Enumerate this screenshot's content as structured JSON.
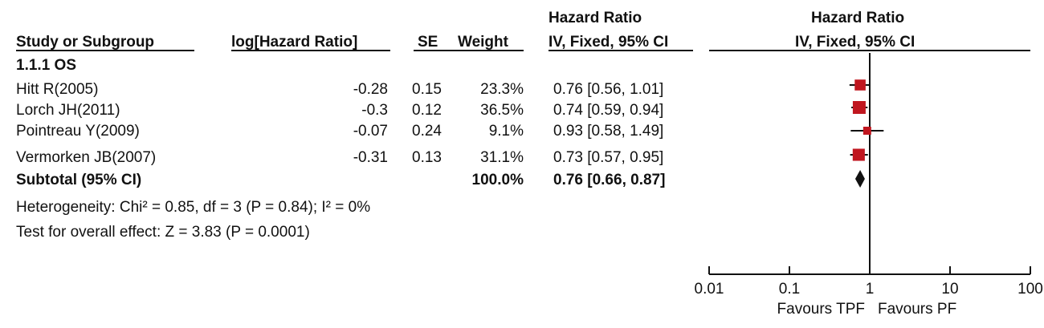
{
  "header": {
    "hazard_ratio_title_left": "Hazard Ratio",
    "hazard_ratio_title_right": "Hazard Ratio",
    "study_or_subgroup": "Study or Subgroup",
    "log_hazard_ratio": "log[Hazard Ratio]",
    "se": "SE",
    "weight": "Weight",
    "method_left": "IV, Fixed, 95% CI",
    "method_right": "IV, Fixed, 95% CI"
  },
  "subgroup_title": "1.1.1 OS",
  "studies": [
    {
      "name": "Hitt R(2005)",
      "log_hr": "-0.28",
      "se": "0.15",
      "weight": "23.3%",
      "ci_text": "0.76 [0.56, 1.01]"
    },
    {
      "name": "Lorch JH(2011)",
      "log_hr": "-0.3",
      "se": "0.12",
      "weight": "36.5%",
      "ci_text": "0.74 [0.59, 0.94]"
    },
    {
      "name": "Pointreau Y(2009)",
      "log_hr": "-0.07",
      "se": "0.24",
      "weight": "9.1%",
      "ci_text": "0.93 [0.58, 1.49]"
    },
    {
      "name": "Vermorken JB(2007)",
      "log_hr": "-0.31",
      "se": "0.13",
      "weight": "31.1%",
      "ci_text": "0.73 [0.57, 0.95]"
    }
  ],
  "subtotal": {
    "label": "Subtotal (95% CI)",
    "weight": "100.0%",
    "ci_text": "0.76 [0.66, 0.87]"
  },
  "heterogeneity": "Heterogeneity: Chi² = 0.85, df = 3 (P = 0.84); I² = 0%",
  "overall_effect": "Test for overall effect: Z = 3.83 (P = 0.0001)",
  "colors": {
    "marker": "#c0161f",
    "diamond": "#111111",
    "axis": "#111111"
  },
  "chart_data": {
    "type": "forest",
    "scale": "log",
    "xlim": [
      0.01,
      100
    ],
    "xticks": [
      "0.01",
      "0.1",
      "1",
      "10",
      "100"
    ],
    "xtick_values": [
      0.01,
      0.1,
      1,
      10,
      100
    ],
    "reference_line": 1,
    "favours_left": "Favours TPF",
    "favours_right": "Favours PF",
    "points": [
      {
        "study": "Hitt R(2005)",
        "hr": 0.76,
        "lo": 0.56,
        "hi": 1.01,
        "weight": 23.3
      },
      {
        "study": "Lorch JH(2011)",
        "hr": 0.74,
        "lo": 0.59,
        "hi": 0.94,
        "weight": 36.5
      },
      {
        "study": "Pointreau Y(2009)",
        "hr": 0.93,
        "lo": 0.58,
        "hi": 1.49,
        "weight": 9.1
      },
      {
        "study": "Vermorken JB(2007)",
        "hr": 0.73,
        "lo": 0.57,
        "hi": 0.95,
        "weight": 31.1
      }
    ],
    "subtotal": {
      "hr": 0.76,
      "lo": 0.66,
      "hi": 0.87
    }
  }
}
